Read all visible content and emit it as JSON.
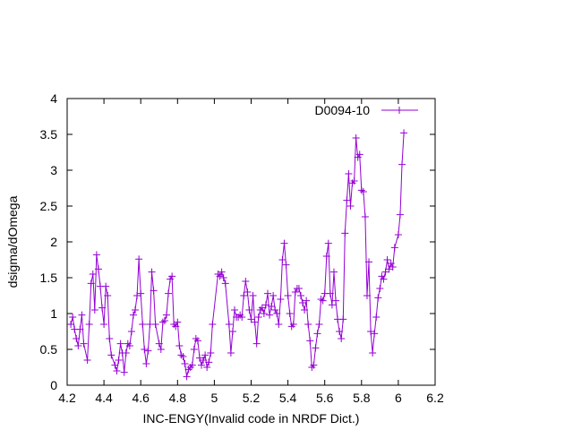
{
  "chart_data": {
    "type": "line",
    "title": "",
    "xlabel": "INC-ENGY(Invalid code in NRDF Dict.)",
    "ylabel": "dsigma/dOmega",
    "xlim": [
      4.2,
      6.2
    ],
    "ylim": [
      0,
      4
    ],
    "x_ticks": [
      "4.2",
      "4.4",
      "4.6",
      "4.8",
      "5",
      "5.2",
      "5.4",
      "5.6",
      "5.8",
      "6",
      "6.2"
    ],
    "y_ticks": [
      "0",
      "0.5",
      "1",
      "1.5",
      "2",
      "2.5",
      "3",
      "3.5",
      "4"
    ],
    "grid": false,
    "legend_position": "top-right",
    "color": "#9400d3",
    "series": [
      {
        "name": "D0094-10",
        "marker": "plus",
        "points": [
          [
            4.22,
            0.85
          ],
          [
            4.23,
            0.95
          ],
          [
            4.24,
            0.78
          ],
          [
            4.25,
            0.65
          ],
          [
            4.26,
            0.55
          ],
          [
            4.27,
            0.78
          ],
          [
            4.28,
            0.98
          ],
          [
            4.29,
            0.58
          ],
          [
            4.31,
            0.35
          ],
          [
            4.32,
            0.85
          ],
          [
            4.33,
            1.42
          ],
          [
            4.34,
            1.55
          ],
          [
            4.35,
            1.05
          ],
          [
            4.36,
            1.82
          ],
          [
            4.37,
            1.62
          ],
          [
            4.38,
            1.38
          ],
          [
            4.39,
            1.08
          ],
          [
            4.4,
            0.85
          ],
          [
            4.41,
            1.38
          ],
          [
            4.42,
            1.25
          ],
          [
            4.43,
            0.65
          ],
          [
            4.44,
            0.42
          ],
          [
            4.46,
            0.28
          ],
          [
            4.47,
            0.2
          ],
          [
            4.48,
            0.35
          ],
          [
            4.49,
            0.58
          ],
          [
            4.5,
            0.45
          ],
          [
            4.51,
            0.18
          ],
          [
            4.52,
            0.45
          ],
          [
            4.53,
            0.58
          ],
          [
            4.54,
            0.55
          ],
          [
            4.55,
            0.75
          ],
          [
            4.56,
            0.98
          ],
          [
            4.57,
            1.05
          ],
          [
            4.58,
            1.25
          ],
          [
            4.59,
            1.76
          ],
          [
            4.6,
            1.28
          ],
          [
            4.61,
            0.85
          ],
          [
            4.62,
            0.5
          ],
          [
            4.63,
            0.3
          ],
          [
            4.64,
            0.48
          ],
          [
            4.65,
            0.85
          ],
          [
            4.66,
            1.58
          ],
          [
            4.67,
            1.32
          ],
          [
            4.68,
            0.85
          ],
          [
            4.7,
            0.58
          ],
          [
            4.71,
            0.5
          ],
          [
            4.72,
            0.88
          ],
          [
            4.73,
            0.9
          ],
          [
            4.74,
            0.98
          ],
          [
            4.75,
            1.28
          ],
          [
            4.76,
            1.48
          ],
          [
            4.77,
            1.52
          ],
          [
            4.78,
            0.85
          ],
          [
            4.79,
            0.82
          ],
          [
            4.8,
            0.88
          ],
          [
            4.81,
            0.55
          ],
          [
            4.82,
            0.42
          ],
          [
            4.83,
            0.4
          ],
          [
            4.84,
            0.3
          ],
          [
            4.85,
            0.12
          ],
          [
            4.86,
            0.22
          ],
          [
            4.87,
            0.25
          ],
          [
            4.88,
            0.28
          ],
          [
            4.89,
            0.5
          ],
          [
            4.9,
            0.65
          ],
          [
            4.91,
            0.62
          ],
          [
            4.92,
            0.38
          ],
          [
            4.93,
            0.28
          ],
          [
            4.94,
            0.35
          ],
          [
            4.95,
            0.42
          ],
          [
            4.96,
            0.25
          ],
          [
            4.97,
            0.32
          ],
          [
            4.98,
            0.45
          ],
          [
            4.99,
            0.85
          ],
          [
            5.02,
            1.55
          ],
          [
            5.03,
            1.52
          ],
          [
            5.04,
            1.58
          ],
          [
            5.05,
            1.5
          ],
          [
            5.06,
            1.42
          ],
          [
            5.08,
            0.85
          ],
          [
            5.09,
            0.45
          ],
          [
            5.1,
            0.75
          ],
          [
            5.11,
            1.05
          ],
          [
            5.12,
            0.95
          ],
          [
            5.13,
            0.95
          ],
          [
            5.14,
            0.98
          ],
          [
            5.15,
            0.95
          ],
          [
            5.16,
            1.25
          ],
          [
            5.17,
            1.45
          ],
          [
            5.18,
            1.3
          ],
          [
            5.19,
            1.05
          ],
          [
            5.2,
            0.92
          ],
          [
            5.21,
            1.25
          ],
          [
            5.22,
            0.88
          ],
          [
            5.23,
            0.58
          ],
          [
            5.24,
            0.95
          ],
          [
            5.25,
            1.05
          ],
          [
            5.26,
            1.08
          ],
          [
            5.27,
            1.0
          ],
          [
            5.28,
            1.12
          ],
          [
            5.29,
            1.28
          ],
          [
            5.3,
            0.98
          ],
          [
            5.31,
            1.1
          ],
          [
            5.32,
            1.25
          ],
          [
            5.33,
            1.05
          ],
          [
            5.34,
            1.0
          ],
          [
            5.35,
            0.85
          ],
          [
            5.36,
            1.2
          ],
          [
            5.37,
            1.75
          ],
          [
            5.38,
            1.98
          ],
          [
            5.39,
            1.68
          ],
          [
            5.4,
            1.25
          ],
          [
            5.41,
            1.0
          ],
          [
            5.42,
            0.82
          ],
          [
            5.43,
            0.85
          ],
          [
            5.44,
            1.3
          ],
          [
            5.45,
            1.35
          ],
          [
            5.46,
            1.35
          ],
          [
            5.47,
            1.25
          ],
          [
            5.48,
            1.15
          ],
          [
            5.49,
            1.05
          ],
          [
            5.5,
            1.18
          ],
          [
            5.51,
            0.85
          ],
          [
            5.52,
            0.62
          ],
          [
            5.53,
            0.25
          ],
          [
            5.54,
            0.28
          ],
          [
            5.55,
            0.52
          ],
          [
            5.56,
            0.72
          ],
          [
            5.57,
            0.85
          ],
          [
            5.58,
            1.2
          ],
          [
            5.59,
            1.18
          ],
          [
            5.6,
            1.28
          ],
          [
            5.61,
            1.8
          ],
          [
            5.62,
            1.98
          ],
          [
            5.63,
            1.28
          ],
          [
            5.64,
            1.12
          ],
          [
            5.65,
            1.58
          ],
          [
            5.66,
            1.18
          ],
          [
            5.67,
            0.92
          ],
          [
            5.68,
            0.75
          ],
          [
            5.69,
            0.65
          ],
          [
            5.7,
            0.92
          ],
          [
            5.71,
            2.12
          ],
          [
            5.72,
            2.58
          ],
          [
            5.73,
            2.95
          ],
          [
            5.74,
            2.5
          ],
          [
            5.75,
            2.82
          ],
          [
            5.76,
            2.85
          ],
          [
            5.77,
            3.45
          ],
          [
            5.78,
            3.18
          ],
          [
            5.79,
            3.22
          ],
          [
            5.8,
            2.72
          ],
          [
            5.81,
            2.7
          ],
          [
            5.82,
            2.35
          ],
          [
            5.83,
            1.25
          ],
          [
            5.84,
            1.72
          ],
          [
            5.85,
            0.75
          ],
          [
            5.86,
            0.45
          ],
          [
            5.87,
            0.72
          ],
          [
            5.88,
            0.95
          ],
          [
            5.89,
            1.22
          ],
          [
            5.9,
            1.35
          ],
          [
            5.91,
            1.52
          ],
          [
            5.92,
            1.48
          ],
          [
            5.93,
            1.58
          ],
          [
            5.94,
            1.75
          ],
          [
            5.95,
            1.62
          ],
          [
            5.96,
            1.7
          ],
          [
            5.97,
            1.65
          ],
          [
            5.98,
            1.92
          ],
          [
            6.0,
            2.1
          ],
          [
            6.01,
            2.38
          ],
          [
            6.02,
            3.08
          ],
          [
            6.03,
            3.52
          ]
        ]
      }
    ]
  }
}
